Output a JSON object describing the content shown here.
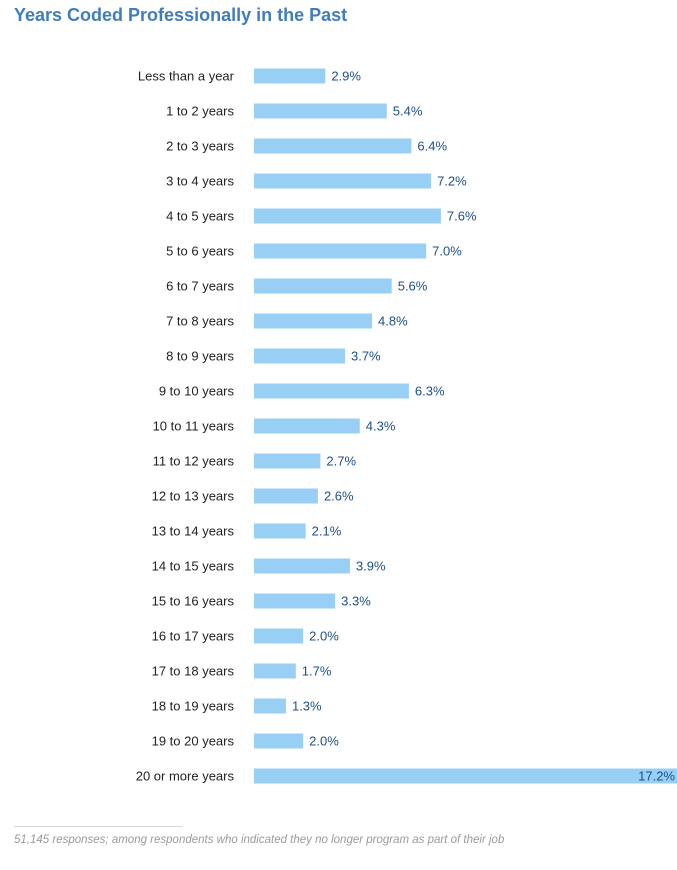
{
  "title": "Years Coded Professionally in the Past",
  "footnote": "51,145 responses; among respondents who indicated they no longer program as part of their job",
  "colors": {
    "bar": "#99cff5",
    "title": "#3f7dbf",
    "value_label": "#1d4f8a"
  },
  "chart_data": {
    "type": "bar",
    "orientation": "horizontal",
    "title": "Years Coded Professionally in the Past",
    "categories": [
      "Less than a year",
      "1 to 2 years",
      "2 to 3 years",
      "3 to 4 years",
      "4 to 5 years",
      "5 to 6 years",
      "6 to 7 years",
      "7 to 8 years",
      "8 to 9 years",
      "9 to 10 years",
      "10 to 11 years",
      "11 to 12 years",
      "12 to 13 years",
      "13 to 14 years",
      "14 to 15 years",
      "15 to 16 years",
      "16 to 17 years",
      "17 to 18 years",
      "18 to 19 years",
      "19 to 20 years",
      "20 or more years"
    ],
    "values": [
      2.9,
      5.4,
      6.4,
      7.2,
      7.6,
      7.0,
      5.6,
      4.8,
      3.7,
      6.3,
      4.3,
      2.7,
      2.6,
      2.1,
      3.9,
      3.3,
      2.0,
      1.7,
      1.3,
      2.0,
      17.2
    ],
    "value_labels": [
      "2.9%",
      "5.4%",
      "6.4%",
      "7.2%",
      "7.6%",
      "7.0%",
      "5.6%",
      "4.8%",
      "3.7%",
      "6.3%",
      "4.3%",
      "2.7%",
      "2.6%",
      "2.1%",
      "3.9%",
      "3.3%",
      "2.0%",
      "1.7%",
      "1.3%",
      "2.0%",
      "17.2%"
    ],
    "unit": "%",
    "xlim": [
      0,
      17.2
    ],
    "grid": false,
    "legend": "none"
  }
}
